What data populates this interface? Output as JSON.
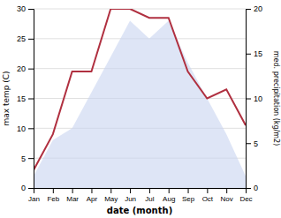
{
  "chart_data": {
    "type": "area",
    "categories": [
      "Jan",
      "Feb",
      "Mar",
      "Apr",
      "May",
      "Jun",
      "Jul",
      "Aug",
      "Sep",
      "Oct",
      "Nov",
      "Dec"
    ],
    "series": [
      {
        "type": "area",
        "color": "#c8d4f0",
        "values": [
          2,
          8,
          10,
          16,
          22,
          28,
          25,
          28,
          21,
          15,
          9,
          2
        ]
      },
      {
        "type": "line",
        "color": "#b03040",
        "axis": "y2",
        "values": [
          2,
          6,
          13,
          13,
          20,
          20,
          19,
          19,
          13,
          10,
          11,
          7
        ]
      }
    ],
    "xlabel": "date (month)",
    "ylabel": "max temp (C)",
    "y2label": "med. precipitation (kg/m2)",
    "ylim": [
      0,
      30
    ],
    "yticks": [
      0,
      5,
      10,
      15,
      20,
      25,
      30
    ],
    "y2lim": [
      0,
      20
    ],
    "y2ticks": [
      0,
      5,
      10,
      15,
      20
    ],
    "grid": true
  }
}
